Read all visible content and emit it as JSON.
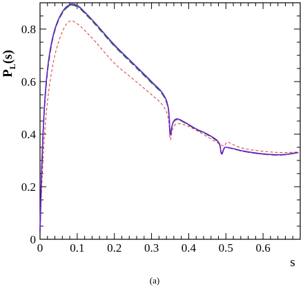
{
  "chart_data": {
    "type": "line",
    "title": "",
    "caption": "(a)",
    "ylabel": {
      "main": "P",
      "sub": "L",
      "suffix": "(s)"
    },
    "xlabel": "s",
    "xlim": [
      0,
      0.7
    ],
    "ylim": [
      0,
      0.9
    ],
    "xticks": [
      {
        "v": 0,
        "label": "0"
      },
      {
        "v": 0.1,
        "label": "0.1"
      },
      {
        "v": 0.2,
        "label": "0.2"
      },
      {
        "v": 0.3,
        "label": "0.3"
      },
      {
        "v": 0.4,
        "label": "0.4"
      },
      {
        "v": 0.5,
        "label": "0.5"
      },
      {
        "v": 0.6,
        "label": "0.6"
      }
    ],
    "yticks": [
      {
        "v": 0,
        "label": "0"
      },
      {
        "v": 0.2,
        "label": "0.2"
      },
      {
        "v": 0.4,
        "label": "0.4"
      },
      {
        "v": 0.6,
        "label": "0.6"
      },
      {
        "v": 0.8,
        "label": "0.8"
      }
    ],
    "grid": false,
    "series": [
      {
        "color": "#6a1fcc",
        "dash": "solid",
        "x": [
          0.0,
          0.003,
          0.008,
          0.015,
          0.025,
          0.04,
          0.06,
          0.08,
          0.1,
          0.12,
          0.15,
          0.2,
          0.25,
          0.3,
          0.33,
          0.345,
          0.35,
          0.355,
          0.36,
          0.37,
          0.39,
          0.42,
          0.45,
          0.48,
          0.488,
          0.495,
          0.5,
          0.52,
          0.55,
          0.6,
          0.65,
          0.695
        ],
        "y": [
          0.03,
          0.2,
          0.4,
          0.57,
          0.7,
          0.8,
          0.865,
          0.893,
          0.89,
          0.865,
          0.82,
          0.74,
          0.67,
          0.6,
          0.555,
          0.5,
          0.4,
          0.43,
          0.45,
          0.458,
          0.445,
          0.42,
          0.4,
          0.37,
          0.325,
          0.345,
          0.35,
          0.345,
          0.335,
          0.325,
          0.322,
          0.33
        ]
      },
      {
        "color": "#1a8a1a",
        "dash": "8,5",
        "x": [
          0.0,
          0.003,
          0.008,
          0.015,
          0.025,
          0.04,
          0.06,
          0.08,
          0.1,
          0.12,
          0.15,
          0.2,
          0.25,
          0.3,
          0.33,
          0.345,
          0.35,
          0.355,
          0.36,
          0.37,
          0.39,
          0.42,
          0.45,
          0.48,
          0.488,
          0.495,
          0.5,
          0.52,
          0.55,
          0.6,
          0.65,
          0.695
        ],
        "y": [
          0.03,
          0.19,
          0.39,
          0.56,
          0.69,
          0.795,
          0.86,
          0.888,
          0.885,
          0.86,
          0.815,
          0.735,
          0.665,
          0.595,
          0.55,
          0.495,
          0.405,
          0.43,
          0.448,
          0.455,
          0.443,
          0.418,
          0.398,
          0.368,
          0.33,
          0.345,
          0.35,
          0.344,
          0.334,
          0.324,
          0.321,
          0.33
        ]
      },
      {
        "color": "#3b5bdb",
        "dash": "3,3",
        "x": [
          0.0,
          0.003,
          0.008,
          0.015,
          0.025,
          0.04,
          0.06,
          0.08,
          0.1,
          0.12,
          0.15,
          0.2,
          0.25,
          0.3,
          0.33,
          0.345,
          0.35,
          0.355,
          0.36,
          0.37,
          0.39,
          0.42,
          0.45,
          0.48,
          0.488,
          0.495,
          0.5,
          0.52,
          0.55,
          0.6,
          0.65,
          0.695
        ],
        "y": [
          0.03,
          0.195,
          0.395,
          0.565,
          0.695,
          0.798,
          0.862,
          0.89,
          0.887,
          0.862,
          0.817,
          0.737,
          0.667,
          0.597,
          0.552,
          0.497,
          0.402,
          0.43,
          0.449,
          0.456,
          0.444,
          0.419,
          0.399,
          0.369,
          0.328,
          0.345,
          0.35,
          0.344,
          0.334,
          0.324,
          0.321,
          0.33
        ]
      },
      {
        "color": "#e03131",
        "dash": "4,3",
        "x": [
          0.0,
          0.003,
          0.008,
          0.015,
          0.025,
          0.04,
          0.06,
          0.08,
          0.1,
          0.12,
          0.15,
          0.2,
          0.25,
          0.3,
          0.33,
          0.345,
          0.35,
          0.355,
          0.36,
          0.37,
          0.39,
          0.42,
          0.45,
          0.48,
          0.495,
          0.5,
          0.505,
          0.52,
          0.55,
          0.6,
          0.65,
          0.695
        ],
        "y": [
          0.03,
          0.14,
          0.3,
          0.45,
          0.58,
          0.7,
          0.79,
          0.83,
          0.82,
          0.795,
          0.75,
          0.67,
          0.61,
          0.55,
          0.51,
          0.46,
          0.38,
          0.41,
          0.43,
          0.44,
          0.435,
          0.415,
          0.39,
          0.365,
          0.355,
          0.365,
          0.37,
          0.36,
          0.345,
          0.335,
          0.33,
          0.332
        ]
      }
    ]
  }
}
